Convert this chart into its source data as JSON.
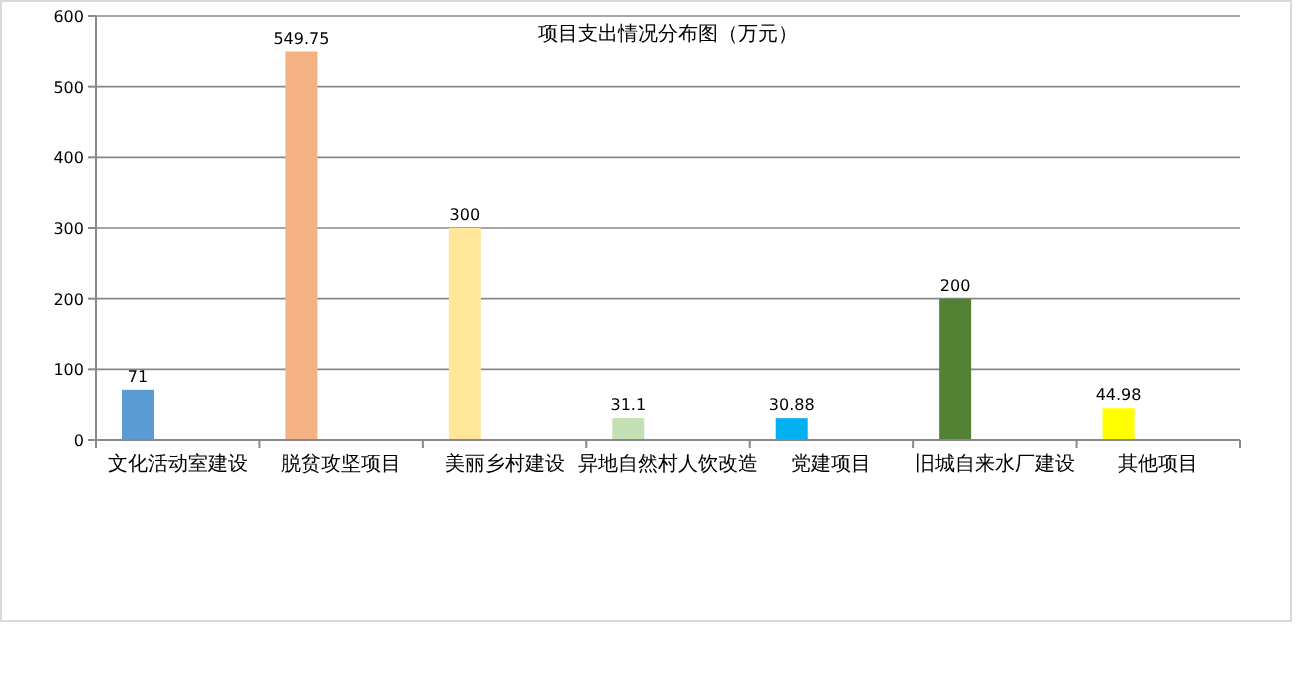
{
  "chart_data": {
    "type": "bar",
    "title": "项目支出情况分布图（万元）",
    "categories": [
      "文化活动室建设",
      "脱贫攻坚项目",
      "美丽乡村建设",
      "异地自然村人饮改造",
      "党建项目",
      "旧城自来水厂建设",
      "其他项目"
    ],
    "values": [
      71,
      549.75,
      300,
      31.1,
      30.88,
      200,
      44.98
    ],
    "colors": [
      "#5b9bd5",
      "#f4b183",
      "#ffe699",
      "#c5e0b4",
      "#00b0f0",
      "#548235",
      "#ffff00"
    ],
    "ylim": [
      0,
      600
    ],
    "yticks": [
      0,
      100,
      200,
      300,
      400,
      500,
      600
    ],
    "grid": "y",
    "data_labels": true
  }
}
